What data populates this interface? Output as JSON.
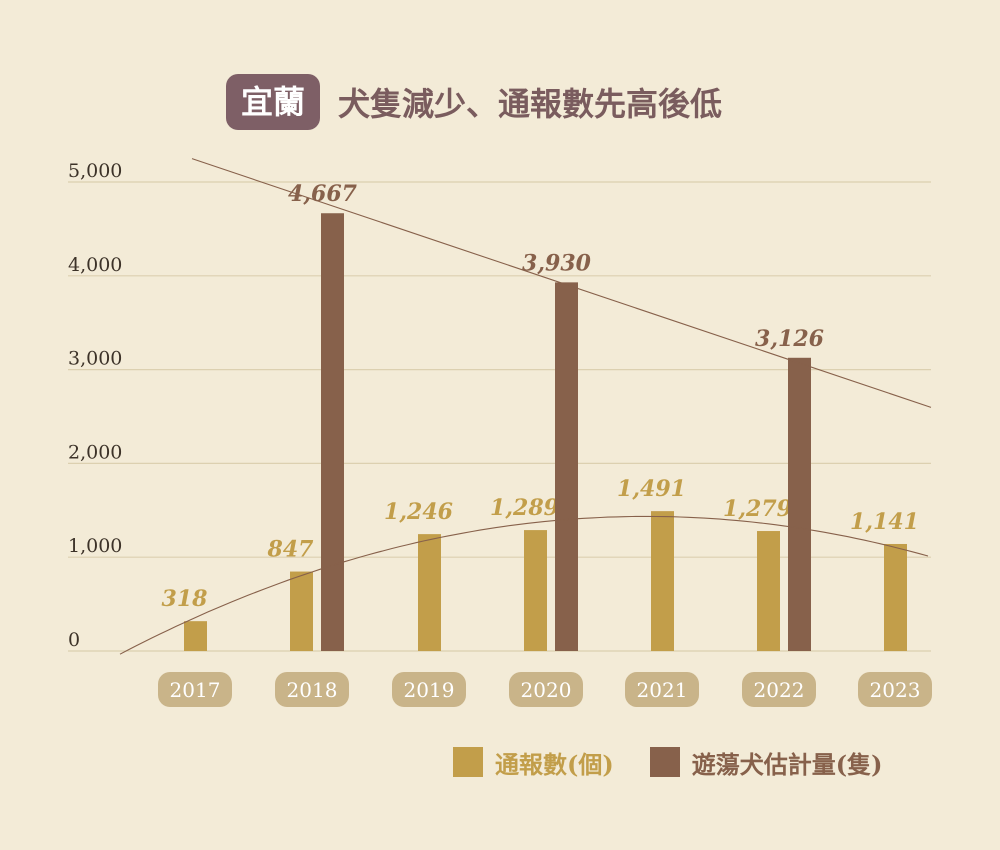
{
  "header": {
    "region_badge": "宜蘭",
    "title": "犬隻減少、通報數先高後低"
  },
  "colors": {
    "reports": "#c29e4a",
    "stray_dogs": "#87614b",
    "badge_bg": "#7e5f66",
    "title": "#7a5c5e",
    "year_pill": "#c9b489",
    "grid": "#dcd0b0",
    "axis_text": "#3c3228"
  },
  "chart_data": {
    "type": "bar",
    "categories": [
      "2017",
      "2018",
      "2019",
      "2020",
      "2021",
      "2022",
      "2023"
    ],
    "series": [
      {
        "name": "通報數(個)",
        "color": "#c29e4a",
        "values": [
          318,
          847,
          1246,
          1289,
          1491,
          1279,
          1141
        ],
        "labels": [
          "318",
          "847",
          "1,246",
          "1,289",
          "1,491",
          "1,279",
          "1,141"
        ]
      },
      {
        "name": "遊蕩犬估計量(隻)",
        "color": "#87614b",
        "values": [
          null,
          4667,
          null,
          3930,
          null,
          3126,
          null
        ],
        "labels": [
          null,
          "4,667",
          null,
          "3,930",
          null,
          "3,126",
          null
        ]
      }
    ],
    "yticks": [
      "0",
      "1,000",
      "2,000",
      "3,000",
      "4,000",
      "5,000"
    ],
    "ylim": [
      0,
      5000
    ],
    "grid": true,
    "trendlines": [
      {
        "series": "遊蕩犬估計量(隻)",
        "shape": "linear"
      },
      {
        "series": "通報數(個)",
        "shape": "curve"
      }
    ],
    "legend_position": "bottom-right"
  }
}
